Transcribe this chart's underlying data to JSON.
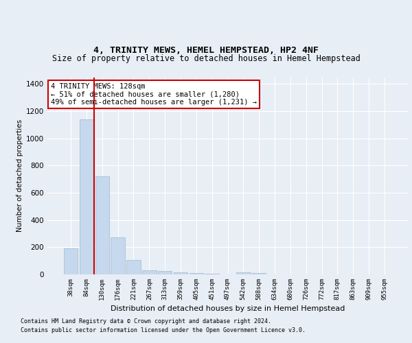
{
  "title1": "4, TRINITY MEWS, HEMEL HEMPSTEAD, HP2 4NF",
  "title2": "Size of property relative to detached houses in Hemel Hempstead",
  "xlabel": "Distribution of detached houses by size in Hemel Hempstead",
  "ylabel": "Number of detached properties",
  "footer1": "Contains HM Land Registry data © Crown copyright and database right 2024.",
  "footer2": "Contains public sector information licensed under the Open Government Licence v3.0.",
  "categories": [
    "38sqm",
    "84sqm",
    "130sqm",
    "176sqm",
    "221sqm",
    "267sqm",
    "313sqm",
    "359sqm",
    "405sqm",
    "451sqm",
    "497sqm",
    "542sqm",
    "588sqm",
    "634sqm",
    "680sqm",
    "726sqm",
    "772sqm",
    "817sqm",
    "863sqm",
    "909sqm",
    "955sqm"
  ],
  "values": [
    190,
    1140,
    720,
    270,
    105,
    30,
    25,
    15,
    10,
    5,
    0,
    15,
    10,
    0,
    0,
    0,
    0,
    0,
    0,
    0,
    0
  ],
  "bar_color": "#c5d8ed",
  "bar_edge_color": "#a0b8d0",
  "vline_x": 1.5,
  "vline_color": "#cc0000",
  "annotation_text": "4 TRINITY MEWS: 128sqm\n← 51% of detached houses are smaller (1,280)\n49% of semi-detached houses are larger (1,231) →",
  "annotation_box_color": "#ffffff",
  "annotation_box_edge": "#cc0000",
  "ylim": [
    0,
    1450
  ],
  "yticks": [
    0,
    200,
    400,
    600,
    800,
    1000,
    1200,
    1400
  ],
  "background_color": "#e8eef5",
  "plot_bg_color": "#e8eef5",
  "grid_color": "#ffffff",
  "title1_fontsize": 9.5,
  "title2_fontsize": 8.5
}
